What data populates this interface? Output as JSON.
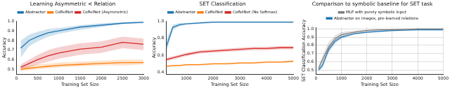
{
  "chart_data": [
    {
      "type": "line",
      "title": "Learning Asymmetric ≺ Relation",
      "x_label": "Training Set Size",
      "y_label": "Accuracy",
      "x": [
        100,
        300,
        500,
        750,
        1000,
        1500,
        2000,
        2500,
        3000
      ],
      "series": [
        {
          "name": "Abstractor",
          "color": "#1f77b4",
          "values": [
            0.72,
            0.8,
            0.84,
            0.88,
            0.9,
            0.94,
            0.96,
            0.98,
            0.99
          ],
          "lower": [
            0.62,
            0.74,
            0.79,
            0.84,
            0.87,
            0.91,
            0.94,
            0.97,
            0.98
          ],
          "upper": [
            0.8,
            0.86,
            0.89,
            0.92,
            0.93,
            0.96,
            0.98,
            0.99,
            1.0
          ]
        },
        {
          "name": "CoRelNet",
          "color": "#ff7f0e",
          "values": [
            0.5,
            0.51,
            0.52,
            0.53,
            0.54,
            0.55,
            0.56,
            0.57,
            0.57
          ],
          "lower": [
            0.48,
            0.49,
            0.5,
            0.51,
            0.52,
            0.53,
            0.54,
            0.54,
            0.55
          ],
          "upper": [
            0.52,
            0.54,
            0.55,
            0.56,
            0.57,
            0.58,
            0.59,
            0.6,
            0.6
          ]
        },
        {
          "name": "CoRelNet (Asymmetric)",
          "color": "#d62728",
          "values": [
            0.52,
            0.56,
            0.6,
            0.64,
            0.67,
            0.71,
            0.73,
            0.78,
            0.76
          ],
          "lower": [
            0.49,
            0.52,
            0.55,
            0.58,
            0.61,
            0.65,
            0.67,
            0.72,
            0.7
          ],
          "upper": [
            0.55,
            0.6,
            0.65,
            0.7,
            0.73,
            0.77,
            0.79,
            0.84,
            0.82
          ]
        }
      ],
      "xlim": [
        0,
        3000
      ],
      "xticks": [
        0,
        500,
        1000,
        1500,
        2000,
        2500,
        3000
      ],
      "ylim": [
        0.45,
        1.0
      ],
      "yticks": [
        0.5,
        0.6,
        0.7,
        0.8,
        0.9,
        {
          "value": 1,
          "label": "1.0"
        }
      ],
      "grid": false,
      "legend": "top"
    },
    {
      "type": "line",
      "title": "SET Classification",
      "x_label": "Training Set Size",
      "y_label": "Accuracy",
      "x": [
        250,
        500,
        750,
        1000,
        1500,
        2000,
        2500,
        3000,
        3500,
        4000,
        4500,
        5000
      ],
      "series": [
        {
          "name": "Abstractor",
          "color": "#1f77b4",
          "values": [
            0.7,
            0.93,
            0.96,
            0.97,
            0.98,
            0.99,
            0.99,
            0.99,
            0.99,
            0.99,
            0.99,
            0.99
          ],
          "lower": [
            0.62,
            0.9,
            0.94,
            0.96,
            0.97,
            0.98,
            0.98,
            0.98,
            0.98,
            0.98,
            0.98,
            0.98
          ],
          "upper": [
            0.78,
            0.96,
            0.98,
            0.98,
            0.99,
            1.0,
            1.0,
            1.0,
            1.0,
            1.0,
            1.0,
            1.0
          ]
        },
        {
          "name": "CoRelNet",
          "color": "#ff7f0e",
          "values": [
            0.47,
            0.48,
            0.48,
            0.49,
            0.49,
            0.5,
            0.5,
            0.51,
            0.51,
            0.52,
            0.52,
            0.53
          ],
          "lower": [
            0.46,
            0.47,
            0.47,
            0.48,
            0.48,
            0.49,
            0.49,
            0.5,
            0.5,
            0.51,
            0.51,
            0.52
          ],
          "upper": [
            0.48,
            0.49,
            0.49,
            0.5,
            0.5,
            0.51,
            0.51,
            0.52,
            0.52,
            0.53,
            0.53,
            0.54
          ]
        },
        {
          "name": "CoRelNet (No Softmax)",
          "color": "#d62728",
          "values": [
            0.55,
            0.57,
            0.59,
            0.61,
            0.64,
            0.65,
            0.66,
            0.67,
            0.68,
            0.68,
            0.69,
            0.69
          ],
          "lower": [
            0.53,
            0.55,
            0.57,
            0.59,
            0.62,
            0.63,
            0.64,
            0.65,
            0.66,
            0.66,
            0.67,
            0.67
          ],
          "upper": [
            0.57,
            0.59,
            0.61,
            0.63,
            0.66,
            0.67,
            0.68,
            0.69,
            0.7,
            0.7,
            0.71,
            0.71
          ]
        }
      ],
      "xlim": [
        250,
        5000
      ],
      "xticks": [
        1000,
        2000,
        3000,
        4000,
        5000
      ],
      "ylim": [
        0.38,
        1.0
      ],
      "yticks": [
        0.4,
        0.6,
        0.8,
        {
          "value": 1,
          "label": "1.0"
        }
      ],
      "grid": false,
      "legend": "top"
    },
    {
      "type": "line",
      "title": "Comparison to symbolic baseline for SET task",
      "x_label": "Training Set Size",
      "y_label": "SET Classification Accuracy",
      "x": [
        100,
        250,
        500,
        750,
        1000,
        1500,
        2000,
        2500,
        3000,
        4000,
        5000
      ],
      "series": [
        {
          "name": "MLP with purely symbolic input",
          "color": "#7f7f7f",
          "values": [
            0.52,
            0.62,
            0.78,
            0.88,
            0.93,
            0.96,
            0.98,
            0.99,
            0.99,
            1.0,
            1.0
          ],
          "lower": [
            0.49,
            0.57,
            0.72,
            0.84,
            0.9,
            0.94,
            0.97,
            0.98,
            0.98,
            0.99,
            0.99
          ],
          "upper": [
            0.55,
            0.67,
            0.84,
            0.92,
            0.96,
            0.98,
            0.99,
            1.0,
            1.0,
            1.0,
            1.0
          ]
        },
        {
          "name": "Abstractor on images, pre-learned relations",
          "color": "#1f77b4",
          "values": [
            0.5,
            0.55,
            0.75,
            0.85,
            0.9,
            0.94,
            0.96,
            0.97,
            0.98,
            0.99,
            0.99
          ],
          "lower": [
            0.48,
            0.52,
            0.71,
            0.82,
            0.88,
            0.93,
            0.95,
            0.96,
            0.97,
            0.98,
            0.98
          ],
          "upper": [
            0.52,
            0.58,
            0.79,
            0.88,
            0.92,
            0.95,
            0.97,
            0.98,
            0.99,
            1.0,
            1.0
          ]
        }
      ],
      "xlim": [
        0,
        5000
      ],
      "xticks": [
        0,
        1000,
        2000,
        3000,
        4000,
        5000
      ],
      "ylim": [
        0.45,
        1.02
      ],
      "yticks": [
        0.5,
        0.6,
        0.7,
        0.8,
        0.9,
        {
          "value": 1,
          "label": "1.0"
        }
      ],
      "grid": true,
      "legend": "top"
    }
  ]
}
